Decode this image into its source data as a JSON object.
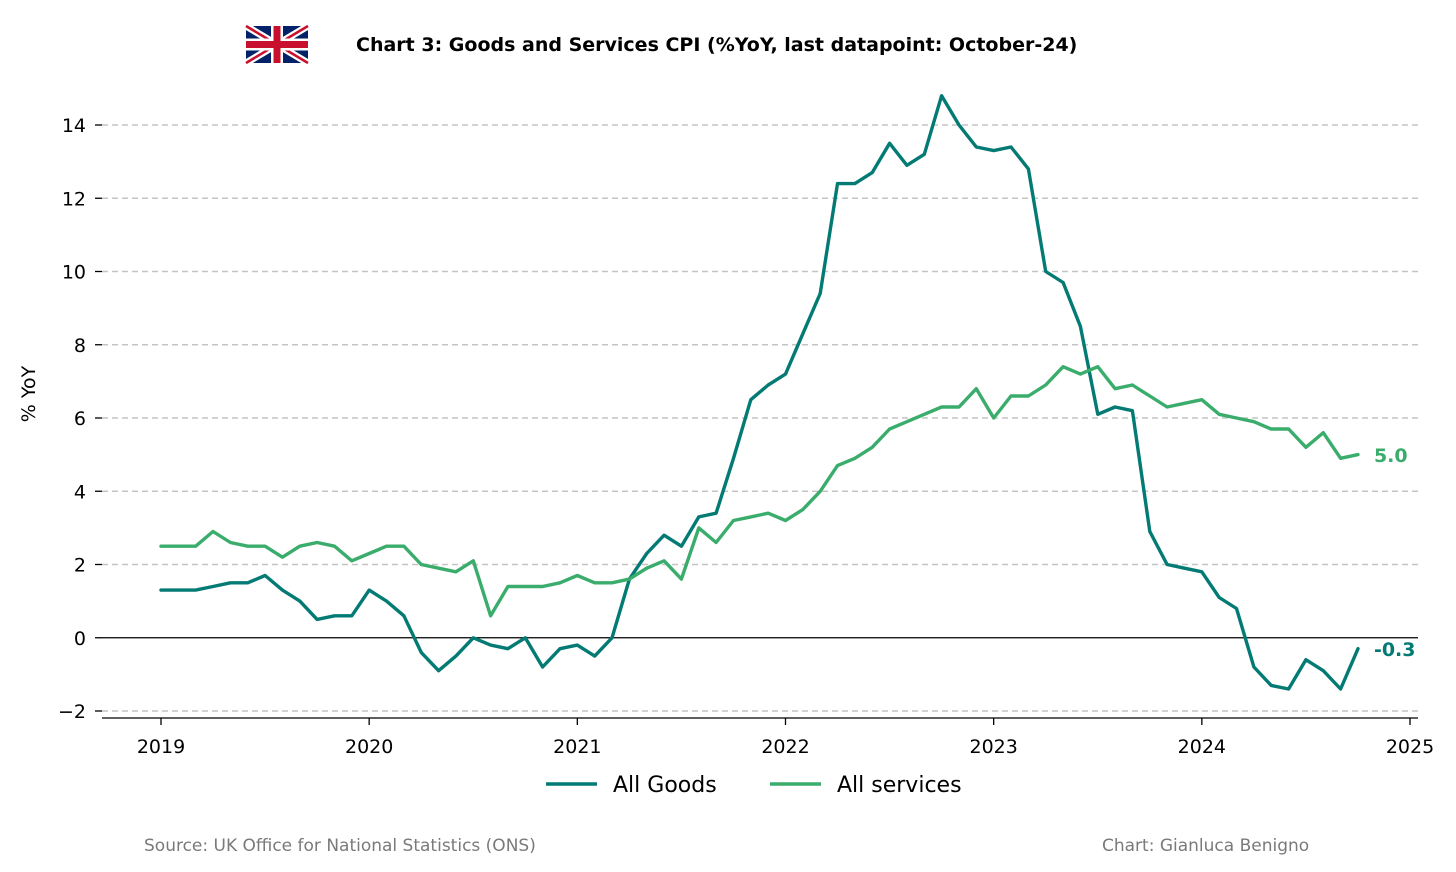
{
  "header": {
    "title": "Chart 3: Goods and Services CPI (%YoY, last datapoint: October-24)",
    "flag_icon": "uk-flag-icon"
  },
  "footer": {
    "source": "Source: UK Office for National Statistics (ONS)",
    "credit": "Chart: Gianluca Benigno"
  },
  "colors": {
    "goods": "#037b74",
    "services": "#3aac6b",
    "grid": "#c4c4c4",
    "zero_line": "#000000",
    "footer_text": "#7a7a7a"
  },
  "chart_data": {
    "type": "line",
    "title": "Chart 3: Goods and Services CPI (%YoY, last datapoint: October-24)",
    "xlabel": "",
    "ylabel": "% YoY",
    "x_start": "2019-01",
    "x_frequency": "monthly",
    "xlim": [
      "2018-09",
      "2025-01"
    ],
    "ylim": [
      -2.2,
      14.9
    ],
    "xticks": [
      "2019",
      "2020",
      "2021",
      "2022",
      "2023",
      "2024",
      "2025"
    ],
    "yticks": [
      -2,
      0,
      2,
      4,
      6,
      8,
      10,
      12,
      14
    ],
    "ytick_labels": [
      "−2",
      "0",
      "2",
      "4",
      "6",
      "8",
      "10",
      "12",
      "14"
    ],
    "grid": "horizontal dashed",
    "zero_line": true,
    "legend_position": "bottom-center",
    "series": [
      {
        "name": "All Goods",
        "color": "#037b74",
        "end_label": "-0.3",
        "values": [
          1.3,
          1.3,
          1.3,
          1.4,
          1.5,
          1.5,
          1.7,
          1.3,
          1.0,
          0.5,
          0.6,
          0.6,
          1.3,
          1.0,
          0.6,
          -0.4,
          -0.9,
          -0.5,
          0.0,
          -0.2,
          -0.3,
          0.0,
          -0.8,
          -0.3,
          -0.2,
          -0.5,
          0.0,
          1.6,
          2.3,
          2.8,
          2.5,
          3.3,
          3.4,
          4.9,
          6.5,
          6.9,
          7.2,
          8.3,
          9.4,
          12.4,
          12.4,
          12.7,
          13.5,
          12.9,
          13.2,
          14.8,
          14.0,
          13.4,
          13.3,
          13.4,
          12.8,
          10.0,
          9.7,
          8.5,
          6.1,
          6.3,
          6.2,
          2.9,
          2.0,
          1.9,
          1.8,
          1.1,
          0.8,
          -0.8,
          -1.3,
          -1.4,
          -0.6,
          -0.9,
          -1.4,
          -0.3
        ]
      },
      {
        "name": "All services",
        "color": "#3aac6b",
        "end_label": "5.0",
        "values": [
          2.5,
          2.5,
          2.5,
          2.9,
          2.6,
          2.5,
          2.5,
          2.2,
          2.5,
          2.6,
          2.5,
          2.1,
          2.3,
          2.5,
          2.5,
          2.0,
          1.9,
          1.8,
          2.1,
          0.6,
          1.4,
          1.4,
          1.4,
          1.5,
          1.7,
          1.5,
          1.5,
          1.6,
          1.9,
          2.1,
          1.6,
          3.0,
          2.6,
          3.2,
          3.3,
          3.4,
          3.2,
          3.5,
          4.0,
          4.7,
          4.9,
          5.2,
          5.7,
          5.9,
          6.1,
          6.3,
          6.3,
          6.8,
          6.0,
          6.6,
          6.6,
          6.9,
          7.4,
          7.2,
          7.4,
          6.8,
          6.9,
          6.6,
          6.3,
          6.4,
          6.5,
          6.1,
          6.0,
          5.9,
          5.7,
          5.7,
          5.2,
          5.6,
          4.9,
          5.0
        ]
      }
    ]
  }
}
